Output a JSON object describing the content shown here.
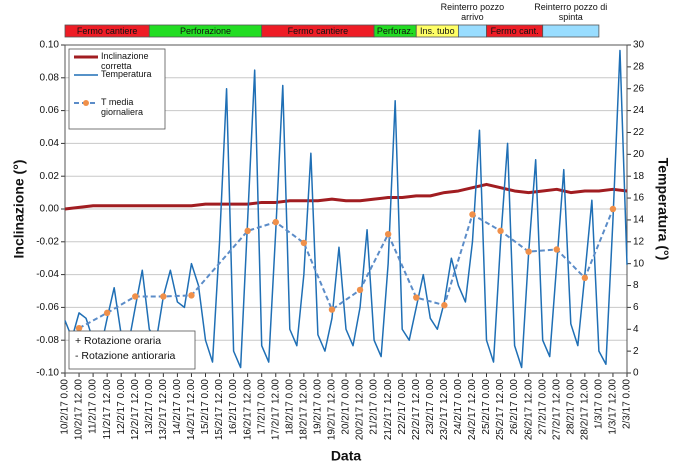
{
  "chart_data": {
    "type": "line",
    "xlabel": "Data",
    "ylabel": "Inclinazione (°)",
    "y2label": "Temperatura (°)",
    "categories": [
      "10/2/17 0.00",
      "10/2/17 12.00",
      "11/2/17 0.00",
      "11/2/17 12.00",
      "12/2/17 0.00",
      "12/2/17 12.00",
      "13/2/17 0.00",
      "13/2/17 12.00",
      "14/2/17 0.00",
      "14/2/17 12.00",
      "15/2/17 0.00",
      "15/2/17 12.00",
      "16/2/17 0.00",
      "16/2/17 12.00",
      "17/2/17 0.00",
      "17/2/17 12.00",
      "18/2/17 0.00",
      "18/2/17 12.00",
      "19/2/17 0.00",
      "19/2/17 12.00",
      "20/2/17 0.00",
      "20/2/17 12.00",
      "21/2/17 0.00",
      "21/2/17 12.00",
      "22/2/17 0.00",
      "22/2/17 12.00",
      "23/2/17 0.00",
      "23/2/17 12.00",
      "24/2/17 0.00",
      "24/2/17 12.00",
      "25/2/17 0.00",
      "25/2/17 12.00",
      "26/2/17 0.00",
      "26/2/17 12.00",
      "27/2/17 0.00",
      "27/2/17 12.00",
      "28/2/17 0.00",
      "28/2/17 12.00",
      "1/3/17 0.00",
      "1/3/17 12.00",
      "2/3/17 0.00"
    ],
    "ylim": [
      -0.1,
      0.1
    ],
    "yticks": [
      {
        "value": -0.1,
        "label": "-0.10"
      },
      -0.08,
      -0.06,
      -0.04,
      -0.02,
      {
        "value": 0,
        "label": "0.00"
      },
      0.02,
      0.04,
      0.06,
      0.08,
      {
        "value": 0.1,
        "label": "0.10"
      }
    ],
    "y2lim": [
      0,
      30
    ],
    "y2ticks": [
      0,
      2,
      4,
      6,
      8,
      10,
      12,
      14,
      16,
      18,
      20,
      22,
      24,
      26,
      28,
      30
    ],
    "grid": true,
    "legend": "upper left",
    "series": [
      {
        "name": "Inclinazione corretta",
        "color": "#a11d21",
        "line_width": 3,
        "axis": "y",
        "values": [
          0.0,
          0.001,
          0.002,
          0.002,
          0.002,
          0.002,
          0.002,
          0.002,
          0.002,
          0.002,
          0.003,
          0.003,
          0.003,
          0.003,
          0.004,
          0.004,
          0.005,
          0.005,
          0.005,
          0.006,
          0.005,
          0.005,
          0.006,
          0.007,
          0.007,
          0.008,
          0.008,
          0.01,
          0.011,
          0.013,
          0.015,
          0.013,
          0.011,
          0.01,
          0.011,
          0.012,
          0.01,
          0.011,
          0.011,
          0.012,
          0.011
        ]
      },
      {
        "name": "Temperatura",
        "color": "#1f6fb5",
        "line_width": 1.5,
        "axis": "y2",
        "x": [
          "10/2/17 0.00",
          "10/2/17 6.00",
          "10/2/17 12.00",
          "10/2/17 18.00",
          "11/2/17 0.00",
          "11/2/17 6.00",
          "11/2/17 12.00",
          "11/2/17 18.00",
          "12/2/17 0.00",
          "12/2/17 6.00",
          "12/2/17 12.00",
          "12/2/17 18.00",
          "13/2/17 0.00",
          "13/2/17 6.00",
          "13/2/17 12.00",
          "13/2/17 18.00",
          "14/2/17 0.00",
          "14/2/17 6.00",
          "14/2/17 12.00",
          "14/2/17 18.00",
          "15/2/17 0.00",
          "15/2/17 6.00",
          "15/2/17 12.00",
          "15/2/17 18.00",
          "16/2/17 0.00",
          "16/2/17 6.00",
          "16/2/17 12.00",
          "16/2/17 18.00",
          "17/2/17 0.00",
          "17/2/17 6.00",
          "17/2/17 12.00",
          "17/2/17 18.00",
          "18/2/17 0.00",
          "18/2/17 6.00",
          "18/2/17 12.00",
          "18/2/17 18.00",
          "19/2/17 0.00",
          "19/2/17 6.00",
          "19/2/17 12.00",
          "19/2/17 18.00",
          "20/2/17 0.00",
          "20/2/17 6.00",
          "20/2/17 12.00",
          "20/2/17 18.00",
          "21/2/17 0.00",
          "21/2/17 6.00",
          "21/2/17 12.00",
          "21/2/17 18.00",
          "22/2/17 0.00",
          "22/2/17 6.00",
          "22/2/17 12.00",
          "22/2/17 18.00",
          "23/2/17 0.00",
          "23/2/17 6.00",
          "23/2/17 12.00",
          "23/2/17 18.00",
          "24/2/17 0.00",
          "24/2/17 6.00",
          "24/2/17 12.00",
          "24/2/17 18.00",
          "25/2/17 0.00",
          "25/2/17 6.00",
          "25/2/17 12.00",
          "25/2/17 18.00",
          "26/2/17 0.00",
          "26/2/17 6.00",
          "26/2/17 12.00",
          "26/2/17 18.00",
          "27/2/17 0.00",
          "27/2/17 6.00",
          "27/2/17 12.00",
          "27/2/17 18.00",
          "28/2/17 0.00",
          "28/2/17 6.00",
          "28/2/17 12.00",
          "28/2/17 18.00",
          "1/3/17 0.00",
          "1/3/17 6.00",
          "1/3/17 12.00",
          "1/3/17 18.00",
          "2/3/17 0.00"
        ],
        "values": [
          4.8,
          3.2,
          5.5,
          5.0,
          3.0,
          2.0,
          5.0,
          7.8,
          3.5,
          2.5,
          6.0,
          9.4,
          4.0,
          3.0,
          7.0,
          9.4,
          6.5,
          6.0,
          10.0,
          8.0,
          3.0,
          1.0,
          12.0,
          26.0,
          2.0,
          0.5,
          14.0,
          27.7,
          2.5,
          1.0,
          13.0,
          26.3,
          4.0,
          2.5,
          9.0,
          20.1,
          3.5,
          2.0,
          5.0,
          11.5,
          4.0,
          2.5,
          6.0,
          13.1,
          3.0,
          1.5,
          10.0,
          24.9,
          4.0,
          3.0,
          6.0,
          9.0,
          5.0,
          4.0,
          6.5,
          10.5,
          8.0,
          6.5,
          12.0,
          22.2,
          3.0,
          1.0,
          12.0,
          21.0,
          2.5,
          0.5,
          11.0,
          19.5,
          3.0,
          1.5,
          10.0,
          18.6,
          4.5,
          2.5,
          9.0,
          15.8,
          2.0,
          0.8,
          14.0,
          29.5,
          9.9
        ]
      },
      {
        "name": "T media giornaliera",
        "color": "#5b8cc8",
        "marker_color": "#f0904a",
        "line_width": 2,
        "style": "dashed",
        "axis": "y2",
        "x": [
          "10/2/17 12.00",
          "11/2/17 12.00",
          "12/2/17 12.00",
          "13/2/17 12.00",
          "14/2/17 12.00",
          "16/2/17 12.00",
          "17/2/17 12.00",
          "18/2/17 12.00",
          "19/2/17 12.00",
          "20/2/17 12.00",
          "21/2/17 12.00",
          "22/2/17 12.00",
          "23/2/17 12.00",
          "24/2/17 12.00",
          "25/2/17 12.00",
          "26/2/17 12.00",
          "27/2/17 12.00",
          "28/2/17 12.00",
          "1/3/17 12.00"
        ],
        "values": [
          4.1,
          5.5,
          7.0,
          7.0,
          7.1,
          13.0,
          13.8,
          11.9,
          5.8,
          7.6,
          12.7,
          6.9,
          6.2,
          14.5,
          13.0,
          11.1,
          11.3,
          8.7,
          15.0
        ]
      }
    ],
    "phases": [
      {
        "label": "Fermo cantiere",
        "color": "#ee1c25",
        "start": "10/2/17 0.00",
        "end": "13/2/17 0.00"
      },
      {
        "label": "Perforazione",
        "color": "#22dd22",
        "start": "13/2/17 0.00",
        "end": "17/2/17 0.00"
      },
      {
        "label": "Fermo cantiere",
        "color": "#ee1c25",
        "start": "17/2/17 0.00",
        "end": "21/2/17 0.00"
      },
      {
        "label": "Perforaz.",
        "color": "#22dd22",
        "start": "21/2/17 0.00",
        "end": "22/2/17 12.00"
      },
      {
        "label": "Ins. tubo",
        "color": "#ffff66",
        "start": "22/2/17 12.00",
        "end": "24/2/17 0.00"
      },
      {
        "label": "Reinterro pozzo arrivo",
        "label_position": "above",
        "color": "#99ddff",
        "start": "24/2/17 0.00",
        "end": "25/2/17 0.00"
      },
      {
        "label": "Fermo cant.",
        "color": "#ee1c25",
        "start": "25/2/17 0.00",
        "end": "27/2/17 0.00"
      },
      {
        "label": "Reinterro pozzo di spinta",
        "label_position": "above",
        "color": "#99ddff",
        "start": "27/2/17 0.00",
        "end": "1/3/17 0.00"
      }
    ],
    "annotation": [
      "+ Rotazione oraria",
      "- Rotazione antioraria"
    ]
  }
}
